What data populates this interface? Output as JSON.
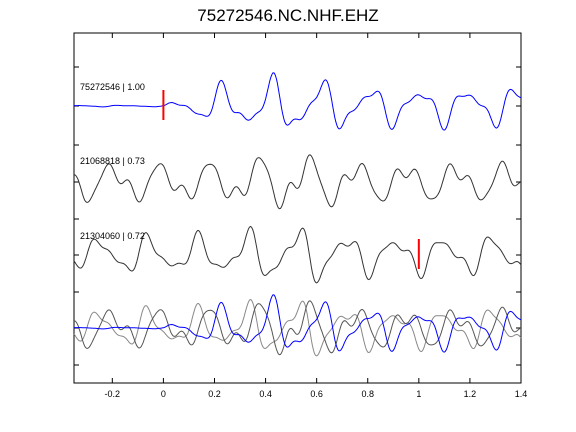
{
  "chart_data": {
    "type": "line",
    "title": "75272546.NC.NHF.EHZ",
    "xlabel": "",
    "ylabel": "",
    "xlim": [
      -0.35,
      1.4
    ],
    "x_ticks": [
      -0.2,
      0,
      0.2,
      0.4,
      0.6,
      0.8,
      1,
      1.2,
      1.4
    ],
    "x_tick_labels": [
      "-0.2",
      "0",
      "0.2",
      "0.4",
      "0.6",
      "0.8",
      "1",
      "1.2",
      "1.4"
    ],
    "grid": false,
    "colors": {
      "reference": "#0000ff",
      "comparison": "#333333",
      "pick_marker": "#ff0000",
      "axes": "#000000"
    },
    "traces": [
      {
        "label": "75272546 | 1.00",
        "color": "#0000ff",
        "pick_time": 0.0
      },
      {
        "label": "21068818 | 0.73",
        "color": "#333333",
        "pick_time": null
      },
      {
        "label": "21304060 | 0.72",
        "color": "#333333",
        "pick_time": 1.0
      }
    ],
    "overlay": {
      "traces": [
        "75272546",
        "21068818",
        "21304060"
      ]
    }
  }
}
